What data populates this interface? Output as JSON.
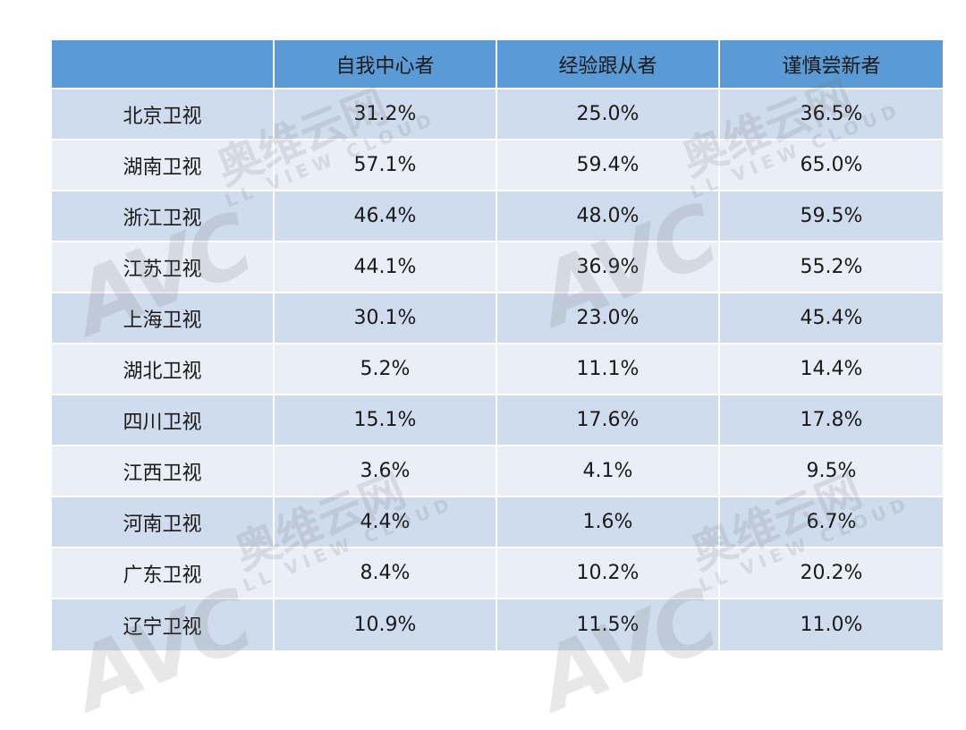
{
  "table": {
    "headers": [
      "",
      "自我中心者",
      "经验跟从者",
      "谨慎尝新者"
    ],
    "rows": [
      [
        "北京卫视",
        "31.2%",
        "25.0%",
        "36.5%"
      ],
      [
        "湖南卫视",
        "57.1%",
        "59.4%",
        "65.0%"
      ],
      [
        "浙江卫视",
        "46.4%",
        "48.0%",
        "59.5%"
      ],
      [
        "江苏卫视",
        "44.1%",
        "36.9%",
        "55.2%"
      ],
      [
        "上海卫视",
        "30.1%",
        "23.0%",
        "45.4%"
      ],
      [
        "湖北卫视",
        "5.2%",
        "11.1%",
        "14.4%"
      ],
      [
        "四川卫视",
        "15.1%",
        "17.6%",
        "17.8%"
      ],
      [
        "江西卫视",
        "3.6%",
        "4.1%",
        "9.5%"
      ],
      [
        "河南卫视",
        "4.4%",
        "1.6%",
        "6.7%"
      ],
      [
        "广东卫视",
        "8.4%",
        "10.2%",
        "20.2%"
      ],
      [
        "辽宁卫视",
        "10.9%",
        "11.5%",
        "11.0%"
      ]
    ]
  },
  "watermark": {
    "logo": "AVC",
    "cn": "奥维云网",
    "en": "LL VIEW CLOUD"
  },
  "colors": {
    "header_bg": "#5b9bd5",
    "row_odd_bg": "#cfdcee",
    "row_even_bg": "#e9eef7"
  }
}
